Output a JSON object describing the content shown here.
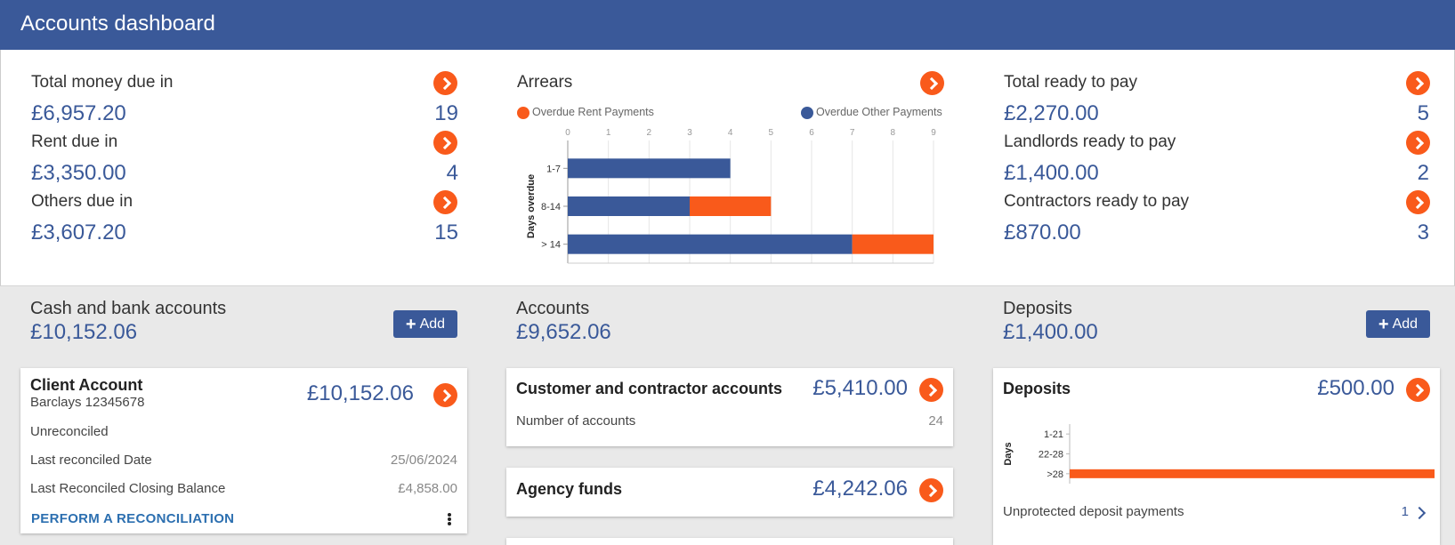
{
  "header": {
    "title": "Accounts dashboard"
  },
  "money_due": {
    "title": "Total money due in",
    "total": "£6,957.20",
    "total_count": "19",
    "rent_label": "Rent due in",
    "rent": "£3,350.00",
    "rent_count": "4",
    "others_label": "Others due in",
    "others": "£3,607.20",
    "others_count": "15"
  },
  "arrears": {
    "title": "Arrears",
    "legend_rent": "Overdue Rent Payments",
    "legend_other": "Overdue Other Payments"
  },
  "ready_to_pay": {
    "title": "Total ready to pay",
    "total": "£2,270.00",
    "total_count": "5",
    "landlords_label": "Landlords ready to pay",
    "landlords": "£1,400.00",
    "landlords_count": "2",
    "contractors_label": "Contractors ready to pay",
    "contractors": "£870.00",
    "contractors_count": "3"
  },
  "cash_bank": {
    "title": "Cash and bank accounts",
    "amount": "£10,152.06",
    "add_label": "Add",
    "card": {
      "title": "Client Account",
      "subtitle": "Barclays 12345678",
      "amount": "£10,152.06",
      "status": "Unreconciled",
      "last_date_label": "Last reconciled Date",
      "last_date": "25/06/2024",
      "closing_label": "Last Reconciled Closing Balance",
      "closing": "£4,858.00",
      "action": "PERFORM A RECONCILIATION"
    }
  },
  "accounts": {
    "title": "Accounts",
    "amount": "£9,652.06",
    "customer_title": "Customer and contractor accounts",
    "customer_amount": "£5,410.00",
    "num_label": "Number of accounts",
    "num_value": "24",
    "agency_title": "Agency funds",
    "agency_amount": "£4,242.06"
  },
  "deposits": {
    "title": "Deposits",
    "amount": "£1,400.00",
    "add_label": "Add",
    "card_title": "Deposits",
    "card_amount": "£500.00",
    "unprotected_label": "Unprotected deposit payments",
    "unprotected_count": "1"
  },
  "colors": {
    "brand": "#3a5999",
    "accent": "#f95a1b"
  },
  "chart_data": [
    {
      "type": "bar",
      "orientation": "horizontal",
      "stacked": true,
      "title": "",
      "ylabel": "Days overdue",
      "categories": [
        "1-7",
        "8-14",
        "> 14"
      ],
      "x_ticks": [
        "0",
        "1",
        "2",
        "3",
        "4",
        "5",
        "6",
        "7",
        "8",
        "9"
      ],
      "xlim": [
        0,
        9
      ],
      "series": [
        {
          "name": "Overdue Other Payments",
          "color": "#3a5999",
          "values": [
            4,
            3,
            7
          ]
        },
        {
          "name": "Overdue Rent Payments",
          "color": "#f95a1b",
          "values": [
            0,
            2,
            2
          ]
        }
      ],
      "legend": "top"
    },
    {
      "type": "bar",
      "orientation": "horizontal",
      "title": "",
      "ylabel": "Days",
      "categories": [
        "1-21",
        "22-28",
        ">28"
      ],
      "series": [
        {
          "color": "#f95a1b",
          "values": [
            0,
            0,
            1
          ]
        }
      ],
      "xlim": [
        0,
        1
      ]
    }
  ]
}
